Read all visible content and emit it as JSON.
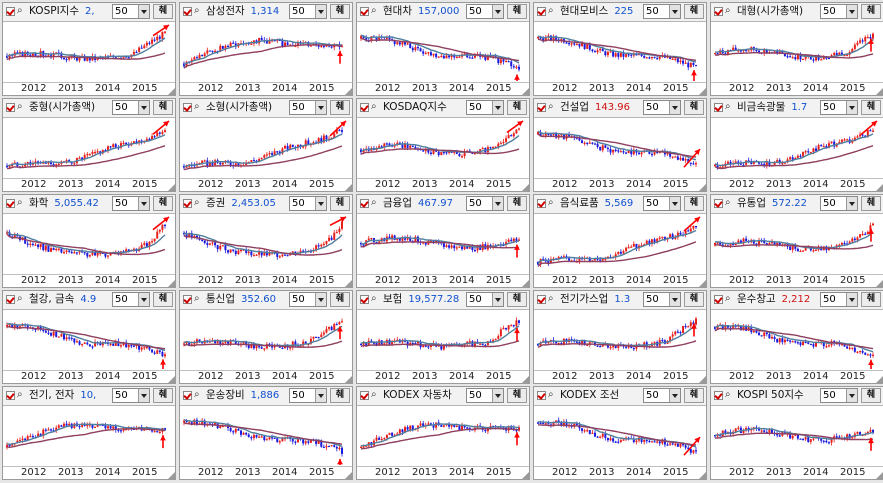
{
  "ui": {
    "icon_magnifier": "magnifier-icon",
    "icon_check": "checkbox-icon",
    "option_glyph": "췌",
    "colors": {
      "up_candle": "#e8201a",
      "down_candle": "#1a1ae0",
      "ma_short": "#4f7f9f",
      "ma_long": "#8f3f5f",
      "arrow": "#ff0000",
      "value_blue": "#1050d0",
      "value_red": "#d01010"
    }
  },
  "panels": [
    {
      "name": "KOSPI지수",
      "value": "2,",
      "value_color": "blue",
      "period": "50",
      "years": [
        "2012",
        "2013",
        "2014",
        "2015"
      ],
      "trend": "up_rising",
      "arrow": "up_right"
    },
    {
      "name": "삼성전자",
      "value": "1,314",
      "value_color": "blue",
      "period": "50",
      "years": [
        "2012",
        "2013",
        "2014",
        "2015"
      ],
      "trend": "hump",
      "arrow": "up"
    },
    {
      "name": "현대차",
      "value": "157,000",
      "value_color": "blue",
      "period": "50",
      "years": [
        "2012",
        "2013",
        "2014",
        "2015"
      ],
      "trend": "down",
      "arrow": "up"
    },
    {
      "name": "현대모비스",
      "value": "225",
      "value_color": "blue",
      "period": "50",
      "years": [
        "2012",
        "2013",
        "2014",
        "2015"
      ],
      "trend": "down",
      "arrow": "up"
    },
    {
      "name": "대형(시가총액)",
      "value": "",
      "value_color": "blue",
      "period": "50",
      "years": [
        "2012",
        "2013",
        "2014",
        "2015"
      ],
      "trend": "flat_up",
      "arrow": "up"
    },
    {
      "name": "중형(시가총액)",
      "value": "",
      "value_color": "blue",
      "period": "50",
      "years": [
        "2012",
        "2013",
        "2014",
        "2015"
      ],
      "trend": "strong_up",
      "arrow": "up_right"
    },
    {
      "name": "소형(시가총액)",
      "value": "",
      "value_color": "blue",
      "period": "50",
      "years": [
        "2012",
        "2013",
        "2014",
        "2015"
      ],
      "trend": "strong_up",
      "arrow": "up_right"
    },
    {
      "name": "KOSDAQ지수",
      "value": "",
      "value_color": "blue",
      "period": "50",
      "years": [
        "2012",
        "2013",
        "2014",
        "2015"
      ],
      "trend": "flat_up",
      "arrow": "up_right"
    },
    {
      "name": "건설업",
      "value": "143.96",
      "value_color": "red",
      "period": "50",
      "years": [
        "2012",
        "2013",
        "2014",
        "2015"
      ],
      "trend": "down",
      "arrow": "up_right"
    },
    {
      "name": "비금속광물",
      "value": "1.7",
      "value_color": "blue",
      "period": "50",
      "years": [
        "2012",
        "2013",
        "2014",
        "2015"
      ],
      "trend": "strong_up",
      "arrow": "up_right"
    },
    {
      "name": "화학",
      "value": "5,055.42",
      "value_color": "blue",
      "period": "50",
      "years": [
        "2012",
        "2013",
        "2014",
        "2015"
      ],
      "trend": "u_shape",
      "arrow": "up_right"
    },
    {
      "name": "증권",
      "value": "2,453.05",
      "value_color": "blue",
      "period": "50",
      "years": [
        "2012",
        "2013",
        "2014",
        "2015"
      ],
      "trend": "u_shape",
      "arrow": "up_right"
    },
    {
      "name": "금융업",
      "value": "467.97",
      "value_color": "blue",
      "period": "50",
      "years": [
        "2012",
        "2013",
        "2014",
        "2015"
      ],
      "trend": "flat",
      "arrow": "up"
    },
    {
      "name": "음식료품",
      "value": "5,569",
      "value_color": "blue",
      "period": "50",
      "years": [
        "2012",
        "2013",
        "2014",
        "2015"
      ],
      "trend": "strong_up",
      "arrow": "up_right"
    },
    {
      "name": "유통업",
      "value": "572.22",
      "value_color": "blue",
      "period": "50",
      "years": [
        "2012",
        "2013",
        "2014",
        "2015"
      ],
      "trend": "flat_up",
      "arrow": "up"
    },
    {
      "name": "철강, 금속",
      "value": "4.9",
      "value_color": "blue",
      "period": "50",
      "years": [
        "2012",
        "2013",
        "2014",
        "2015"
      ],
      "trend": "down",
      "arrow": "up"
    },
    {
      "name": "통신업",
      "value": "352.60",
      "value_color": "blue",
      "period": "50",
      "years": [
        "2012",
        "2013",
        "2014",
        "2015"
      ],
      "trend": "up_rising",
      "arrow": "up"
    },
    {
      "name": "보험",
      "value": "19,577.28",
      "value_color": "blue",
      "period": "50",
      "years": [
        "2012",
        "2013",
        "2014",
        "2015"
      ],
      "trend": "up_rising",
      "arrow": "up"
    },
    {
      "name": "전기가스업",
      "value": "1.3",
      "value_color": "blue",
      "period": "50",
      "years": [
        "2012",
        "2013",
        "2014",
        "2015"
      ],
      "trend": "up_rising",
      "arrow": "up"
    },
    {
      "name": "운수창고",
      "value": "2,212",
      "value_color": "red",
      "period": "50",
      "years": [
        "2012",
        "2013",
        "2014",
        "2015"
      ],
      "trend": "down",
      "arrow": "up"
    },
    {
      "name": "전기, 전자",
      "value": "10,",
      "value_color": "blue",
      "period": "50",
      "years": [
        "2012",
        "2013",
        "2014",
        "2015"
      ],
      "trend": "hump",
      "arrow": "up"
    },
    {
      "name": "운송장비",
      "value": "1,886",
      "value_color": "blue",
      "period": "50",
      "years": [
        "2012",
        "2013",
        "2014",
        "2015"
      ],
      "trend": "down",
      "arrow": "up"
    },
    {
      "name": "KODEX 자동차",
      "value": "",
      "value_color": "blue",
      "period": "50",
      "years": [
        "2012",
        "2013",
        "2014",
        "2015"
      ],
      "trend": "hump",
      "arrow": "up"
    },
    {
      "name": "KODEX 조선",
      "value": "",
      "value_color": "blue",
      "period": "50",
      "years": [
        "2012",
        "2013",
        "2014",
        "2015"
      ],
      "trend": "down",
      "arrow": "up_right"
    },
    {
      "name": "KOSPI 50지수",
      "value": "",
      "value_color": "blue",
      "period": "50",
      "years": [
        "2012",
        "2013",
        "2014",
        "2015"
      ],
      "trend": "flat",
      "arrow": "up"
    }
  ]
}
